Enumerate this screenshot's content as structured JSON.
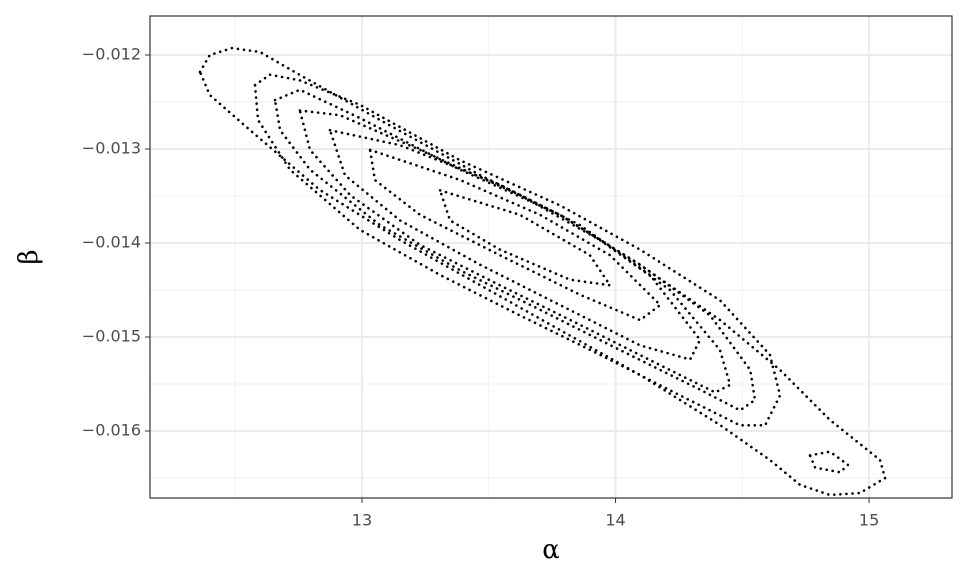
{
  "chart_data": {
    "type": "contour",
    "xlabel": "α",
    "ylabel": "β",
    "xlim": [
      12.164,
      15.327
    ],
    "ylim": [
      -0.016713,
      -0.011585
    ],
    "xticks": [
      13,
      14,
      15
    ],
    "yticks": [
      {
        "value": -0.012,
        "label": "−0.012"
      },
      {
        "value": -0.013,
        "label": "−0.013"
      },
      {
        "value": -0.014,
        "label": "−0.014"
      },
      {
        "value": -0.015,
        "label": "−0.015"
      },
      {
        "value": -0.016,
        "label": "−0.016"
      }
    ],
    "x_minor_grid": [
      12.5,
      13.5,
      14.5
    ],
    "y_minor_grid": [
      -0.0125,
      -0.0135,
      -0.0145,
      -0.0155,
      -0.0165
    ],
    "grid": true,
    "color": "#000000",
    "series": [
      {
        "x": [
          12.361,
          12.4,
          12.487,
          12.598,
          12.755,
          13.071,
          13.465,
          13.781,
          14.097,
          14.412,
          14.649,
          14.846,
          15.043,
          15.063,
          14.964,
          14.846,
          14.728,
          14.609,
          14.412,
          14.097,
          13.781,
          13.465,
          13.15,
          12.834,
          12.558,
          12.4
        ],
        "y": [
          -0.012181,
          -0.012,
          -0.011926,
          -0.011968,
          -0.012213,
          -0.012691,
          -0.013277,
          -0.013702,
          -0.014234,
          -0.014819,
          -0.015351,
          -0.015883,
          -0.016309,
          -0.0165,
          -0.01666,
          -0.016681,
          -0.016574,
          -0.016309,
          -0.015936,
          -0.015404,
          -0.014926,
          -0.014447,
          -0.013968,
          -0.013436,
          -0.012798,
          -0.012426
        ]
      },
      {
        "x": [
          12.578,
          12.637,
          12.755,
          12.992,
          13.387,
          13.781,
          14.097,
          14.412,
          14.609,
          14.649,
          14.59,
          14.491,
          14.254,
          13.939,
          13.623,
          13.308,
          12.992,
          12.716,
          12.59
        ],
        "y": [
          -0.01232,
          -0.01221,
          -0.01227,
          -0.01253,
          -0.01312,
          -0.0136,
          -0.01407,
          -0.01461,
          -0.01519,
          -0.01562,
          -0.01594,
          -0.01594,
          -0.01562,
          -0.01519,
          -0.01477,
          -0.01434,
          -0.01386,
          -0.01322,
          -0.01269
        ]
      },
      {
        "x": [
          14.767,
          14.846,
          14.917,
          14.886,
          14.787
        ],
        "y": [
          -0.01626,
          -0.01622,
          -0.01636,
          -0.01644,
          -0.01639
        ]
      },
      {
        "x": [
          12.657,
          12.755,
          12.992,
          13.387,
          13.781,
          14.097,
          14.373,
          14.531,
          14.55,
          14.491,
          14.333,
          14.018,
          13.702,
          13.387,
          13.071,
          12.795,
          12.677
        ],
        "y": [
          -0.01248,
          -0.01237,
          -0.01267,
          -0.01322,
          -0.0137,
          -0.01423,
          -0.01477,
          -0.01535,
          -0.01567,
          -0.01578,
          -0.01556,
          -0.01514,
          -0.01471,
          -0.01429,
          -0.01381,
          -0.01322,
          -0.0128
        ]
      },
      {
        "x": [
          12.755,
          12.913,
          13.229,
          13.623,
          13.939,
          14.215,
          14.412,
          14.452,
          14.393,
          14.176,
          13.86,
          13.544,
          13.229,
          12.953,
          12.795
        ],
        "y": [
          -0.01259,
          -0.01264,
          -0.01301,
          -0.01349,
          -0.01397,
          -0.0145,
          -0.01514,
          -0.01551,
          -0.01559,
          -0.0153,
          -0.01487,
          -0.01445,
          -0.01402,
          -0.01349,
          -0.01301
        ]
      },
      {
        "x": [
          12.874,
          13.15,
          13.544,
          13.86,
          14.136,
          14.333,
          14.294,
          14.097,
          13.781,
          13.465,
          13.15,
          12.933
        ],
        "y": [
          -0.0128,
          -0.01296,
          -0.01338,
          -0.01381,
          -0.01434,
          -0.01503,
          -0.01524,
          -0.01509,
          -0.01466,
          -0.01423,
          -0.01376,
          -0.01328
        ]
      },
      {
        "x": [
          13.032,
          13.387,
          13.702,
          13.978,
          14.176,
          14.097,
          13.86,
          13.544,
          13.229,
          13.051
        ],
        "y": [
          -0.01301,
          -0.01333,
          -0.0137,
          -0.01413,
          -0.01466,
          -0.01482,
          -0.01455,
          -0.01413,
          -0.0137,
          -0.01333
        ]
      },
      {
        "x": [
          13.308,
          13.623,
          13.899,
          13.978,
          13.821,
          13.544,
          13.347
        ],
        "y": [
          -0.01344,
          -0.0137,
          -0.01413,
          -0.01445,
          -0.01439,
          -0.01407,
          -0.01376
        ]
      }
    ]
  }
}
